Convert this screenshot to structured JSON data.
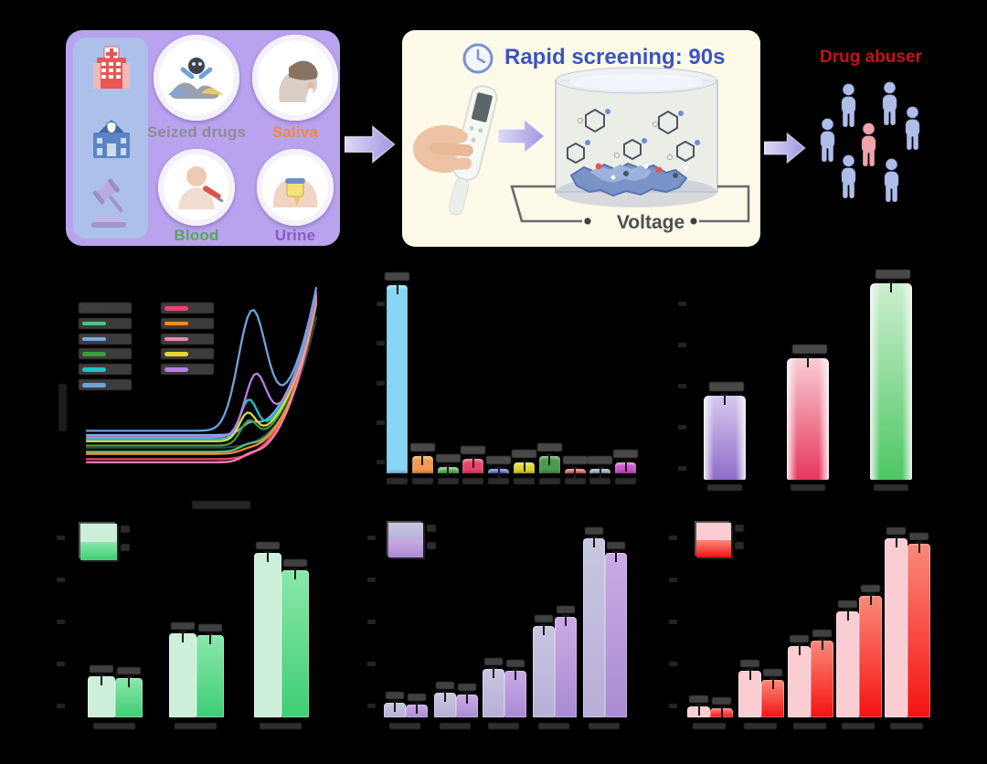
{
  "page": {
    "background": "#000000"
  },
  "schematic": {
    "samples_panel": {
      "bg": "#b9a3ee",
      "sidebar_bg": "#adc0e9",
      "sidebar_icons": [
        "hospital-icon",
        "police-station-icon",
        "gavel-icon"
      ],
      "items": [
        {
          "label": "Seized drugs",
          "label_color": "#8d8d96"
        },
        {
          "label": "Saliva",
          "label_color": "#f0883f"
        },
        {
          "label": "Blood",
          "label_color": "#57a85c"
        },
        {
          "label": "Urine",
          "label_color": "#8a5cc0"
        }
      ]
    },
    "screening_panel": {
      "bg": "#fdfae9",
      "title": "Rapid screening: 90s",
      "title_color": "#3a55be",
      "voltage_label": "Voltage",
      "voltage_color": "#4e4e52",
      "icons": [
        "clock-icon",
        "handheld-sensor",
        "arrow-icon",
        "electrochemical-cell"
      ]
    },
    "abuser_panel": {
      "title": "Drug abuser",
      "title_color": "#c21414",
      "people_color": "#aebde8",
      "abuser_color": "#f2a3ab",
      "people_count": 7
    },
    "arrow_color_light": "#d6d1f5",
    "arrow_color_dark": "#9f97e0"
  },
  "chart_data": [
    {
      "id": "dpv-curves",
      "type": "line",
      "title": "",
      "labels_visible": false,
      "legend_position": "upper-left, two columns",
      "series": [
        {
          "name": "black",
          "color": "#3f3f3f",
          "base": 0.24,
          "peak": 0.0,
          "peak_x": 0.72,
          "peak_w": 0.05,
          "end": 0.86
        },
        {
          "name": "sea-green",
          "color": "#54c08a",
          "base": 0.22,
          "peak": 0.02,
          "peak_x": 0.7,
          "peak_w": 0.05,
          "end": 0.92
        },
        {
          "name": "cornflower-blue",
          "color": "#7aa8e8",
          "base": 0.3,
          "peak": 0.04,
          "peak_x": 0.71,
          "peak_w": 0.05,
          "end": 0.97
        },
        {
          "name": "green",
          "color": "#3c9c3c",
          "base": 0.25,
          "peak": 0.1,
          "peak_x": 0.705,
          "peak_w": 0.05,
          "end": 0.95
        },
        {
          "name": "cyan",
          "color": "#1ac6c6",
          "base": 0.28,
          "peak": 0.17,
          "peak_x": 0.705,
          "peak_w": 0.05,
          "end": 0.97
        },
        {
          "name": "crimson",
          "color": "#e8436a",
          "base": 0.185,
          "peak": 0.0,
          "peak_x": 0.72,
          "peak_w": 0.05,
          "end": 0.98
        },
        {
          "name": "orange",
          "color": "#f58a1f",
          "base": 0.21,
          "peak": 0.01,
          "peak_x": 0.7,
          "peak_w": 0.05,
          "end": 0.93
        },
        {
          "name": "pink",
          "color": "#f77fb4",
          "base": 0.17,
          "peak": 0.02,
          "peak_x": 0.71,
          "peak_w": 0.05,
          "end": 0.96
        },
        {
          "name": "yellow",
          "color": "#e6d437",
          "base": 0.27,
          "peak": 0.12,
          "peak_x": 0.7,
          "peak_w": 0.05,
          "end": 0.94
        },
        {
          "name": "purple",
          "color": "#b77fe0",
          "base": 0.29,
          "peak": 0.27,
          "peak_x": 0.735,
          "peak_w": 0.065,
          "end": 0.95
        },
        {
          "name": "steel-blue",
          "color": "#6fa3d8",
          "base": 0.32,
          "peak": 0.55,
          "peak_x": 0.72,
          "peak_w": 0.085,
          "end": 1.0
        }
      ],
      "legend_order": [
        "black",
        "sea-green",
        "cornflower-blue",
        "green",
        "cyan",
        "steel-blue",
        "crimson",
        "orange",
        "pink",
        "yellow",
        "purple"
      ]
    },
    {
      "id": "selectivity-bars",
      "type": "bar",
      "labels_visible": false,
      "error_bars": true,
      "ylim": [
        0,
        100
      ],
      "values": [
        100,
        9,
        3.5,
        8,
        2.5,
        6,
        9,
        2.5,
        2.5,
        6
      ],
      "colors": [
        "#86d7f4",
        "#f29a52",
        "#5cb85c",
        "#e8436a",
        "#5577dd",
        "#e3d62f",
        "#4c9a4c",
        "#ee6059",
        "#9fb0c2",
        "#ce53ce"
      ]
    },
    {
      "id": "matrix-bars",
      "type": "bar",
      "labels_visible": false,
      "error_bars": true,
      "ylim": [
        0,
        100
      ],
      "values": [
        43,
        62,
        100
      ],
      "colors": [
        [
          "#d7c9ee",
          "#8f6ccb"
        ],
        [
          "#f9cdd4",
          "#e8365c"
        ],
        [
          "#cdefcf",
          "#4cc763"
        ]
      ]
    },
    {
      "id": "green-grouped",
      "type": "bar",
      "labels_visible": false,
      "error_bars": true,
      "ylim": [
        0,
        100
      ],
      "categories": [
        "group-1",
        "group-2",
        "group-3"
      ],
      "series": [
        {
          "name": "light",
          "color": "#cdefd9",
          "values": [
            23,
            47,
            92
          ]
        },
        {
          "name": "dark",
          "color": [
            "#8ae7ab",
            "#3fce74"
          ],
          "values": [
            22,
            46,
            82
          ]
        }
      ]
    },
    {
      "id": "purple-grouped",
      "type": "bar",
      "labels_visible": false,
      "error_bars": true,
      "ylim": [
        0,
        100
      ],
      "categories": [
        "group-1",
        "group-2",
        "group-3",
        "group-4",
        "group-5"
      ],
      "series": [
        {
          "name": "light",
          "color": [
            "#c8c7e0",
            "#b7afd7"
          ],
          "values": [
            8,
            14,
            27,
            51,
            100
          ]
        },
        {
          "name": "dark",
          "color": [
            "#cbaae4",
            "#a98bd4"
          ],
          "values": [
            7,
            13,
            26,
            56,
            92
          ]
        }
      ]
    },
    {
      "id": "red-grouped",
      "type": "bar",
      "labels_visible": false,
      "error_bars": true,
      "ylim": [
        0,
        100
      ],
      "categories": [
        "group-1",
        "group-2",
        "group-3",
        "group-4",
        "group-5"
      ],
      "series": [
        {
          "name": "light",
          "color": "#facdd2",
          "values": [
            6,
            26,
            40,
            59,
            100
          ]
        },
        {
          "name": "dark",
          "color": [
            "#fb8a7a",
            "#f51111"
          ],
          "values": [
            5,
            21,
            43,
            68,
            97
          ]
        }
      ]
    }
  ]
}
